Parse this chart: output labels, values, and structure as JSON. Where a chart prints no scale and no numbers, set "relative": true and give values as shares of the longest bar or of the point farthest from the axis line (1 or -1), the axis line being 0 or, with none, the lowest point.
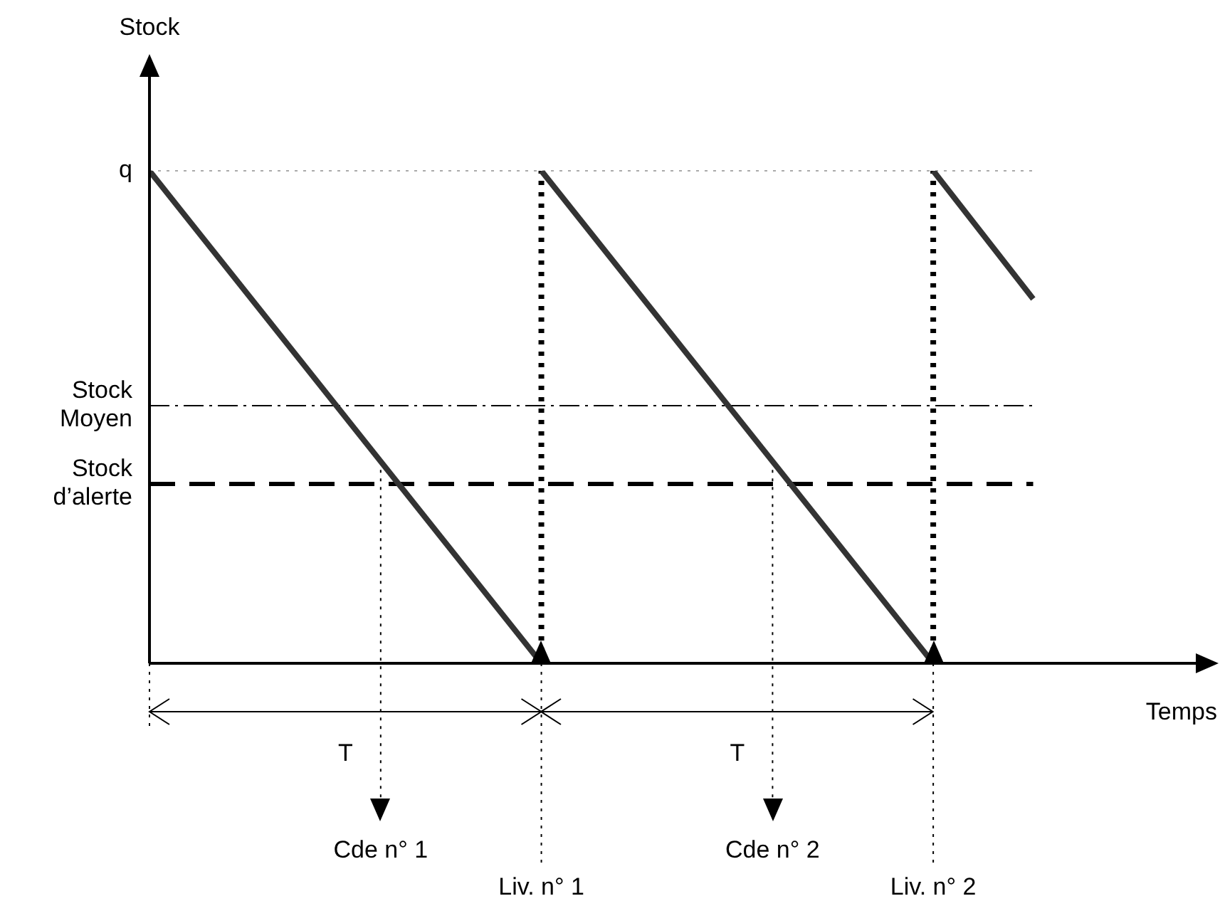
{
  "chart_data": {
    "type": "line",
    "relative": true,
    "xlabel": "Temps",
    "series": [
      {
        "color": "#333333",
        "x": [
          0,
          1,
          1,
          2,
          2,
          2.255
        ],
        "values": [
          1,
          0,
          1,
          0,
          1,
          0.74
        ]
      }
    ],
    "xlim": [
      0,
      2.67
    ],
    "xticks": [
      {
        "value": 1,
        "label": "Liv. n° 1"
      },
      {
        "value": 2,
        "label": "Liv. n° 2"
      }
    ],
    "ref_lines": [
      {
        "axis": "y",
        "value": 1,
        "label": "q",
        "color": "#aaaaaa",
        "line_style": "dotted"
      },
      {
        "axis": "y",
        "value": 0.364,
        "label": "Stock d’alerte",
        "color": "#000000",
        "line_style": "dashed"
      },
      {
        "axis": "y",
        "value": 0.523,
        "label": "Stock Moyen",
        "color": "#000000",
        "line_style": "dashdot"
      },
      {
        "axis": "x",
        "value": 0.59,
        "label": "Cde n° 1",
        "color": "#000000",
        "line_style": "dotted"
      },
      {
        "axis": "x",
        "value": 1.59,
        "label": "Cde n° 2",
        "color": "#000000",
        "line_style": "dotted"
      }
    ],
    "annotations": [
      "Stock",
      "T",
      "T"
    ]
  }
}
